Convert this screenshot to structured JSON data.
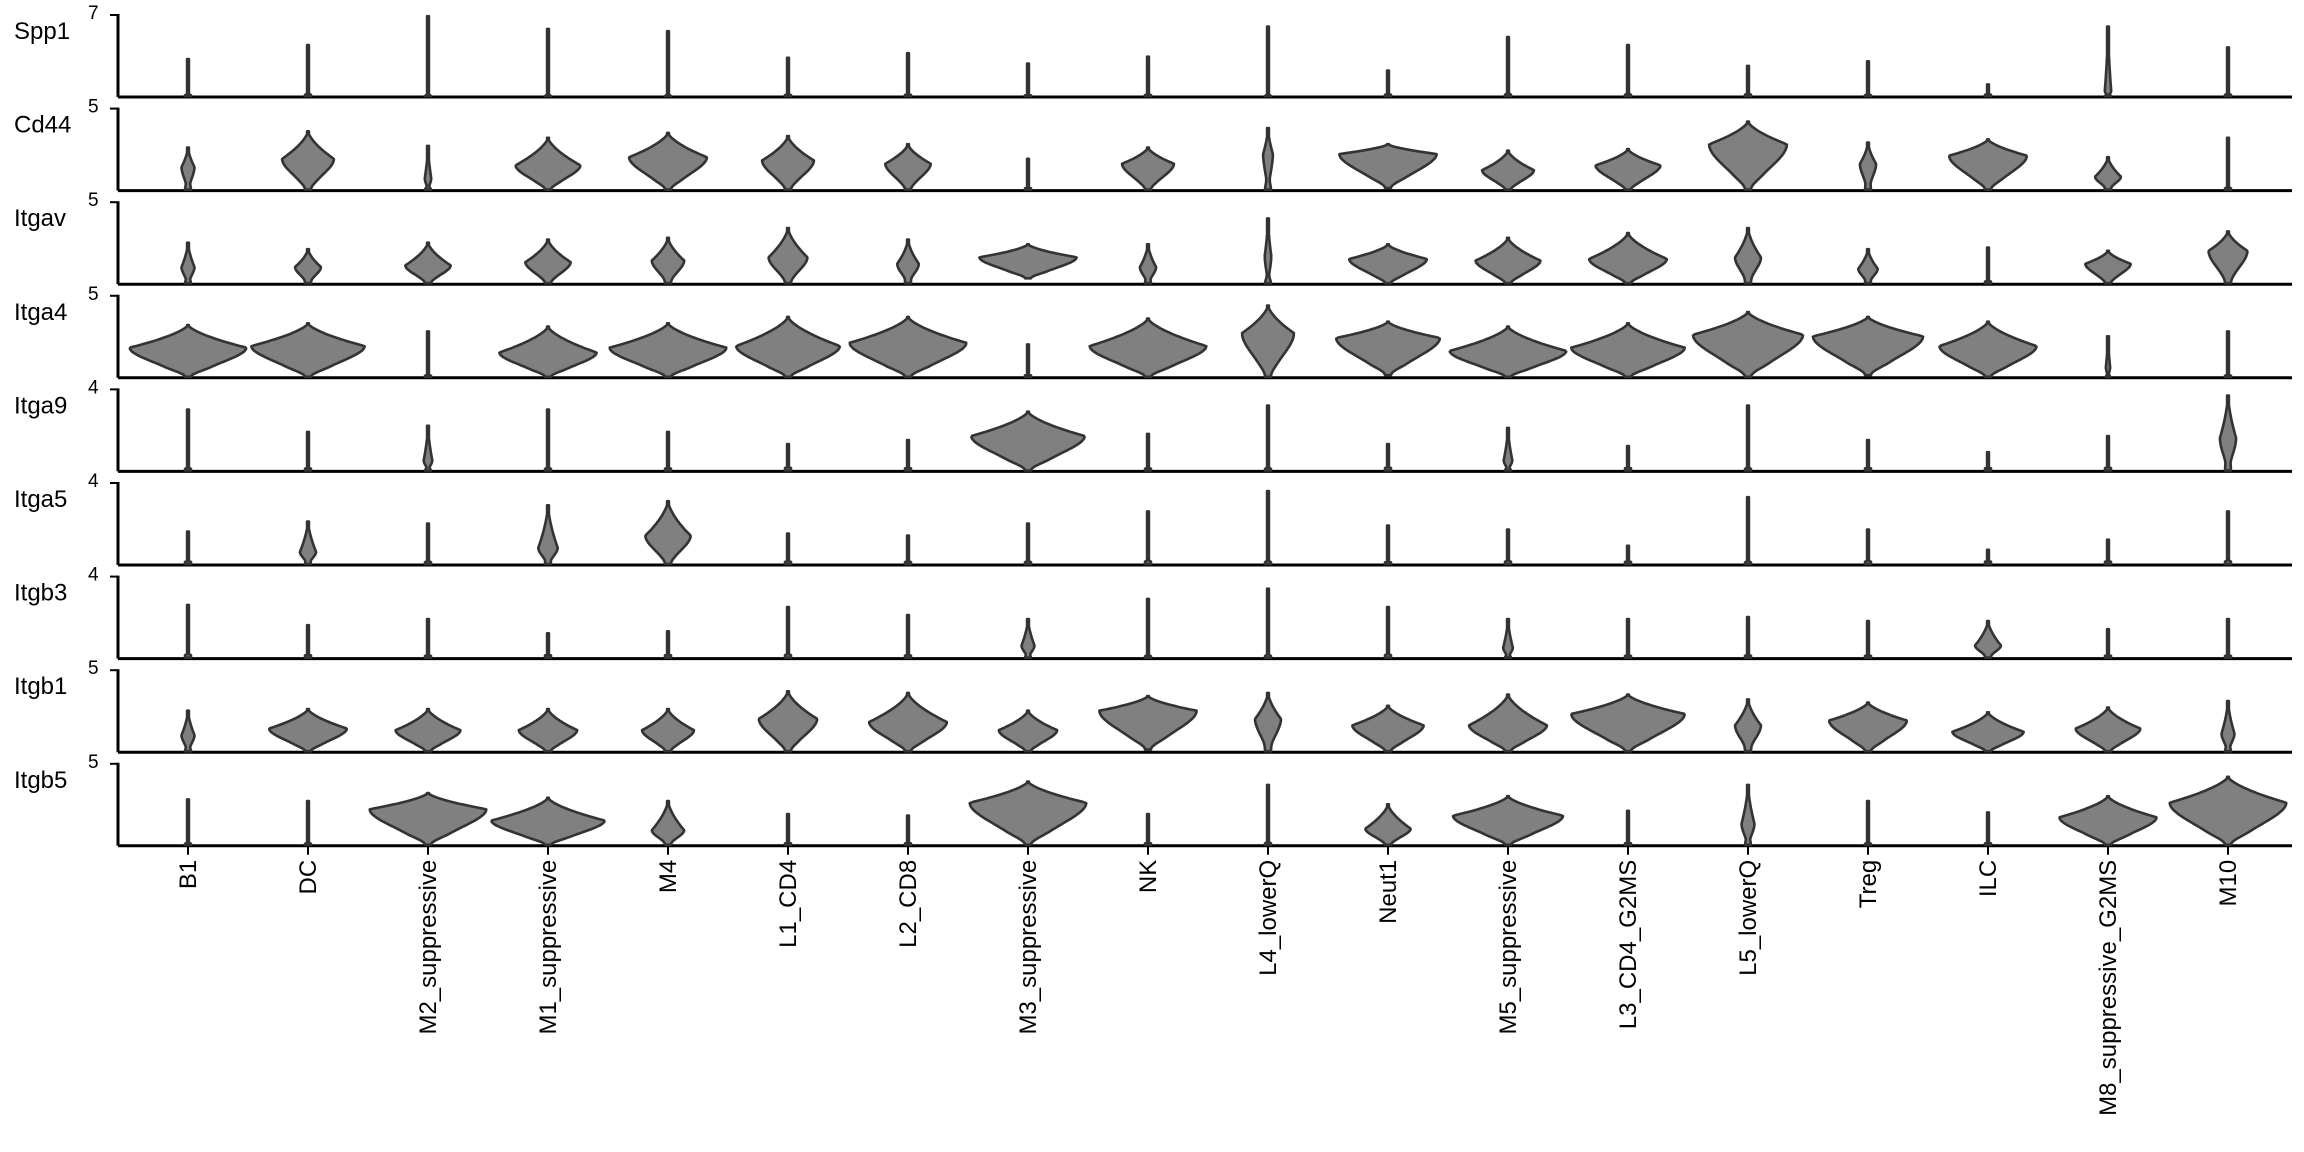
{
  "chart_data": {
    "type": "violin",
    "categories": [
      "B1",
      "DC",
      "M2_suppressive",
      "M1_suppressive",
      "M4",
      "L1_CD4",
      "L2_CD8",
      "M3_suppressive",
      "NK",
      "L4_lowerQ",
      "Neut1",
      "M5_suppressive",
      "L3_CD4_G2MS",
      "L5_lowerQ",
      "Treg",
      "ILC",
      "M8_suppressive_G2MS",
      "M10"
    ],
    "fill_color": "#808080",
    "outline_color": "#333333",
    "genes": [
      {
        "name": "Spp1",
        "ymax_label": "7",
        "ymax": 7,
        "violins": [
          [
            0,
            3.2,
            0,
            0
          ],
          [
            0,
            4.4,
            0,
            0
          ],
          [
            0,
            6.9,
            0,
            0
          ],
          [
            0,
            5.8,
            0,
            0
          ],
          [
            0,
            5.6,
            0,
            0
          ],
          [
            0,
            3.3,
            0,
            0
          ],
          [
            0,
            3.7,
            0,
            0
          ],
          [
            0,
            2.8,
            0,
            0
          ],
          [
            0,
            3.4,
            0,
            0
          ],
          [
            0,
            6.0,
            0,
            0
          ],
          [
            0,
            2.2,
            0,
            0
          ],
          [
            0,
            5.1,
            0,
            0
          ],
          [
            0,
            4.4,
            0,
            0
          ],
          [
            0,
            2.6,
            0,
            0
          ],
          [
            0,
            3.0,
            0,
            0
          ],
          [
            0,
            1.0,
            0,
            0
          ],
          [
            0,
            6.0,
            0.4,
            0.06
          ],
          [
            0,
            4.2,
            0,
            0
          ]
        ]
      },
      {
        "name": "Cd44",
        "ymax_label": "5",
        "ymax": 5,
        "violins": [
          [
            0,
            2.6,
            1.4,
            0.12
          ],
          [
            0,
            3.6,
            1.9,
            0.48
          ],
          [
            0,
            2.7,
            0.7,
            0.06
          ],
          [
            0,
            3.2,
            1.5,
            0.6
          ],
          [
            0,
            3.5,
            2.0,
            0.72
          ],
          [
            0,
            3.3,
            1.8,
            0.48
          ],
          [
            0,
            2.8,
            1.6,
            0.42
          ],
          [
            0,
            1.9,
            0,
            0
          ],
          [
            0,
            2.6,
            1.6,
            0.48
          ],
          [
            0,
            3.8,
            2.2,
            0.09
          ],
          [
            0.1,
            2.8,
            2.2,
            0.9
          ],
          [
            0,
            2.4,
            1.2,
            0.48
          ],
          [
            0,
            2.5,
            1.5,
            0.6
          ],
          [
            0,
            4.2,
            2.8,
            0.72
          ],
          [
            0,
            2.9,
            1.6,
            0.15
          ],
          [
            0,
            3.1,
            2.1,
            0.72
          ],
          [
            0,
            2.0,
            0.8,
            0.24
          ],
          [
            0,
            3.2,
            0,
            0
          ]
        ]
      },
      {
        "name": "Itgav",
        "ymax_label": "5",
        "ymax": 5,
        "violins": [
          [
            0,
            2.5,
            1.0,
            0.12
          ],
          [
            0,
            2.1,
            1.0,
            0.24
          ],
          [
            0,
            2.5,
            1.1,
            0.42
          ],
          [
            0,
            2.7,
            1.3,
            0.42
          ],
          [
            0,
            2.8,
            1.4,
            0.3
          ],
          [
            0,
            3.4,
            1.6,
            0.36
          ],
          [
            0,
            2.7,
            1.2,
            0.2
          ],
          [
            0.3,
            2.4,
            1.6,
            0.9
          ],
          [
            0,
            2.4,
            1.0,
            0.15
          ],
          [
            0,
            4.0,
            1.7,
            0.06
          ],
          [
            0,
            2.4,
            1.5,
            0.72
          ],
          [
            0,
            2.8,
            1.4,
            0.6
          ],
          [
            0,
            3.1,
            1.5,
            0.72
          ],
          [
            0,
            3.4,
            1.6,
            0.24
          ],
          [
            0,
            2.1,
            0.9,
            0.18
          ],
          [
            0,
            2.2,
            0,
            0
          ],
          [
            0,
            2.0,
            1.2,
            0.42
          ],
          [
            0,
            3.2,
            2.0,
            0.36
          ]
        ]
      },
      {
        "name": "Itga4",
        "ymax_label": "5",
        "ymax": 5,
        "violins": [
          [
            0,
            3.2,
            1.8,
            1.08
          ],
          [
            0,
            3.3,
            1.9,
            1.05
          ],
          [
            0,
            2.8,
            0,
            0
          ],
          [
            0,
            3.1,
            1.5,
            0.9
          ],
          [
            0,
            3.3,
            1.8,
            1.08
          ],
          [
            0,
            3.7,
            1.9,
            0.96
          ],
          [
            0,
            3.7,
            2.1,
            1.08
          ],
          [
            0,
            2.0,
            0,
            0
          ],
          [
            0,
            3.6,
            1.9,
            1.08
          ],
          [
            0,
            4.4,
            2.7,
            0.48
          ],
          [
            0.1,
            3.4,
            2.4,
            0.96
          ],
          [
            0,
            3.1,
            1.6,
            1.08
          ],
          [
            0,
            3.3,
            1.8,
            1.05
          ],
          [
            0,
            4.0,
            2.6,
            1.02
          ],
          [
            0.1,
            3.7,
            2.5,
            1.02
          ],
          [
            0,
            3.4,
            1.9,
            0.9
          ],
          [
            0,
            2.5,
            0.6,
            0.04
          ],
          [
            0,
            2.8,
            0,
            0
          ]
        ]
      },
      {
        "name": "Itga9",
        "ymax_label": "4",
        "ymax": 4,
        "violins": [
          [
            0,
            3.0,
            0,
            0
          ],
          [
            0,
            1.9,
            0,
            0
          ],
          [
            0,
            2.2,
            0.5,
            0.08
          ],
          [
            0,
            3.0,
            0,
            0
          ],
          [
            0,
            1.9,
            0,
            0
          ],
          [
            0,
            1.3,
            0,
            0
          ],
          [
            0,
            1.5,
            0,
            0
          ],
          [
            0,
            2.9,
            1.7,
            1.05
          ],
          [
            0,
            1.8,
            0,
            0
          ],
          [
            0,
            3.2,
            0,
            0
          ],
          [
            0,
            1.3,
            0,
            0
          ],
          [
            0,
            2.1,
            0.5,
            0.08
          ],
          [
            0,
            1.2,
            0,
            0
          ],
          [
            0,
            3.2,
            0,
            0
          ],
          [
            0,
            1.5,
            0,
            0
          ],
          [
            0,
            0.9,
            0,
            0
          ],
          [
            0,
            1.7,
            0,
            0
          ],
          [
            0,
            3.7,
            1.6,
            0.15
          ]
        ]
      },
      {
        "name": "Itga5",
        "ymax_label": "4",
        "ymax": 4,
        "violins": [
          [
            0,
            1.6,
            0,
            0
          ],
          [
            0,
            2.1,
            0.6,
            0.15
          ],
          [
            0,
            2.0,
            0,
            0
          ],
          [
            0,
            2.9,
            0.8,
            0.18
          ],
          [
            0,
            3.1,
            1.4,
            0.42
          ],
          [
            0,
            1.5,
            0,
            0
          ],
          [
            0,
            1.4,
            0,
            0
          ],
          [
            0,
            2.0,
            0,
            0
          ],
          [
            0,
            2.6,
            0,
            0
          ],
          [
            0,
            3.6,
            0,
            0
          ],
          [
            0,
            1.9,
            0,
            0
          ],
          [
            0,
            1.7,
            0,
            0
          ],
          [
            0,
            0.9,
            0,
            0
          ],
          [
            0,
            3.3,
            0,
            0
          ],
          [
            0,
            1.7,
            0,
            0
          ],
          [
            0,
            0.7,
            0,
            0
          ],
          [
            0,
            1.2,
            0,
            0
          ],
          [
            0,
            2.6,
            0,
            0
          ]
        ]
      },
      {
        "name": "Itgb3",
        "ymax_label": "4",
        "ymax": 4,
        "violins": [
          [
            0,
            2.6,
            0,
            0
          ],
          [
            0,
            1.6,
            0,
            0
          ],
          [
            0,
            1.9,
            0,
            0
          ],
          [
            0,
            1.2,
            0,
            0
          ],
          [
            0,
            1.3,
            0,
            0
          ],
          [
            0,
            2.5,
            0,
            0
          ],
          [
            0,
            2.1,
            0,
            0
          ],
          [
            0,
            1.9,
            0.6,
            0.12
          ],
          [
            0,
            2.9,
            0,
            0
          ],
          [
            0,
            3.4,
            0,
            0
          ],
          [
            0,
            2.5,
            0,
            0
          ],
          [
            0,
            1.9,
            0.5,
            0.09
          ],
          [
            0,
            1.9,
            0,
            0
          ],
          [
            0,
            2.0,
            0,
            0
          ],
          [
            0,
            1.8,
            0,
            0
          ],
          [
            0,
            1.8,
            0.6,
            0.24
          ],
          [
            0,
            1.4,
            0,
            0
          ],
          [
            0,
            1.9,
            0,
            0
          ]
        ]
      },
      {
        "name": "Itgb1",
        "ymax_label": "5",
        "ymax": 5,
        "violins": [
          [
            0,
            2.5,
            1.0,
            0.12
          ],
          [
            0,
            2.6,
            1.4,
            0.72
          ],
          [
            0,
            2.6,
            1.3,
            0.6
          ],
          [
            0,
            2.6,
            1.3,
            0.54
          ],
          [
            0,
            2.6,
            1.3,
            0.48
          ],
          [
            0,
            3.7,
            2.0,
            0.54
          ],
          [
            0,
            3.6,
            1.8,
            0.72
          ],
          [
            0,
            2.5,
            1.3,
            0.54
          ],
          [
            0.1,
            3.4,
            2.5,
            0.9
          ],
          [
            0,
            3.6,
            2.0,
            0.24
          ],
          [
            0,
            2.8,
            1.6,
            0.66
          ],
          [
            0,
            3.5,
            1.6,
            0.72
          ],
          [
            0,
            3.5,
            2.3,
            1.05
          ],
          [
            0,
            3.2,
            1.6,
            0.24
          ],
          [
            0,
            3.0,
            1.9,
            0.72
          ],
          [
            0,
            2.4,
            1.2,
            0.66
          ],
          [
            0,
            2.7,
            1.4,
            0.6
          ],
          [
            0,
            3.1,
            1.1,
            0.12
          ]
        ]
      },
      {
        "name": "Itgb5",
        "ymax_label": "5",
        "ymax": 5,
        "violins": [
          [
            0,
            2.8,
            0,
            0
          ],
          [
            0,
            2.7,
            0,
            0
          ],
          [
            0,
            3.2,
            2.2,
            1.08
          ],
          [
            0,
            2.9,
            1.5,
            1.05
          ],
          [
            0,
            2.7,
            0.9,
            0.3
          ],
          [
            0,
            1.9,
            0,
            0
          ],
          [
            0,
            1.8,
            0,
            0
          ],
          [
            0,
            3.9,
            2.6,
            1.08
          ],
          [
            0,
            1.9,
            0,
            0
          ],
          [
            0,
            3.7,
            0,
            0
          ],
          [
            0,
            2.5,
            1.0,
            0.42
          ],
          [
            0,
            3.0,
            1.8,
            1.02
          ],
          [
            0,
            2.1,
            0,
            0
          ],
          [
            0,
            3.7,
            1.3,
            0.12
          ],
          [
            0,
            2.7,
            0,
            0
          ],
          [
            0,
            2.0,
            0,
            0
          ],
          [
            0,
            3.0,
            1.7,
            0.9
          ],
          [
            0,
            4.2,
            2.6,
            1.08
          ]
        ]
      }
    ]
  }
}
